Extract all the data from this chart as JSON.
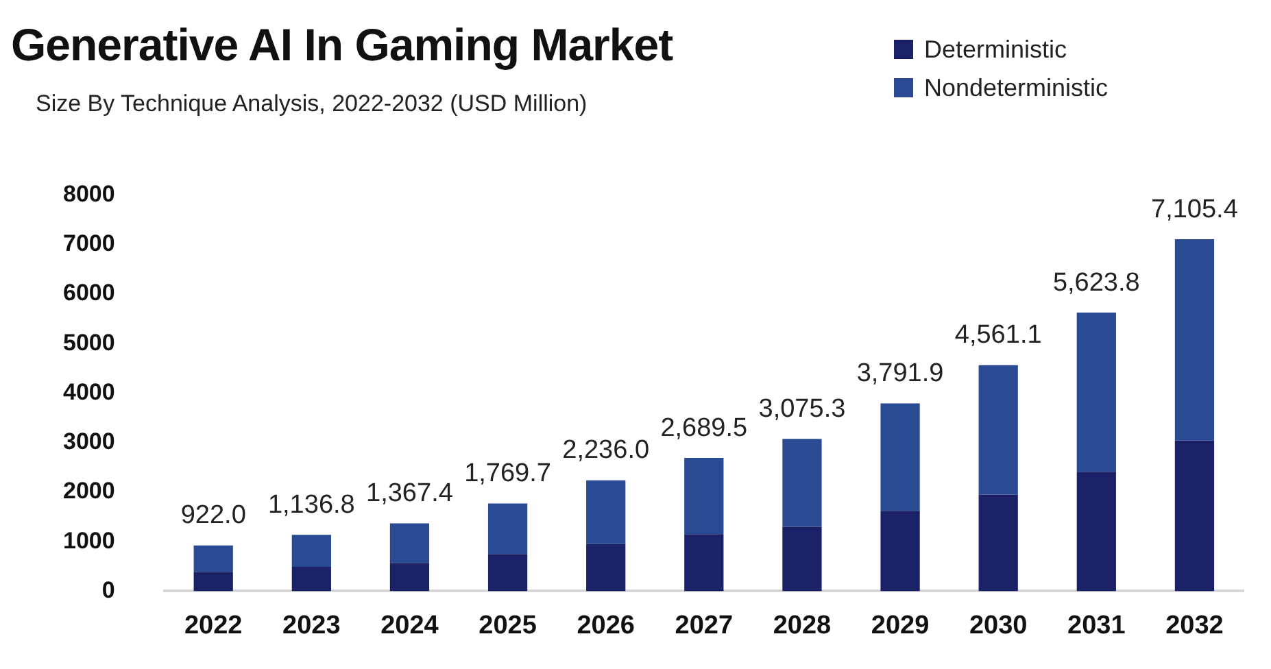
{
  "chart_data": {
    "type": "bar",
    "title": "Generative AI In Gaming Market",
    "subtitle": "Size By Technique Analysis, 2022-2032 (USD Million)",
    "categories": [
      "2022",
      "2023",
      "2024",
      "2025",
      "2026",
      "2027",
      "2028",
      "2029",
      "2030",
      "2031",
      "2032"
    ],
    "series": [
      {
        "name": "Deterministic",
        "color": "#1a2166",
        "values": [
          390,
          490,
          570,
          750,
          950,
          1150,
          1300,
          1620,
          1950,
          2410,
          3040
        ]
      },
      {
        "name": "Nondeterministic",
        "color": "#2b4a94",
        "values": [
          532.0,
          646.8,
          797.4,
          1019.7,
          1286.0,
          1539.5,
          1775.3,
          2171.9,
          2611.1,
          3213.8,
          4065.4
        ]
      }
    ],
    "stacked": true,
    "ylim": [
      0,
      8000
    ],
    "yticks": [
      0,
      1000,
      2000,
      3000,
      4000,
      5000,
      6000,
      7000,
      8000
    ],
    "grid": false,
    "legend": "top right",
    "totals": [
      "922.0",
      "1,136.8",
      "1,367.4",
      "1,769.7",
      "2,236.0",
      "2,689.5",
      "3,075.3",
      "3,791.9",
      "4,561.1",
      "5,623.8",
      "7,105.4"
    ]
  }
}
